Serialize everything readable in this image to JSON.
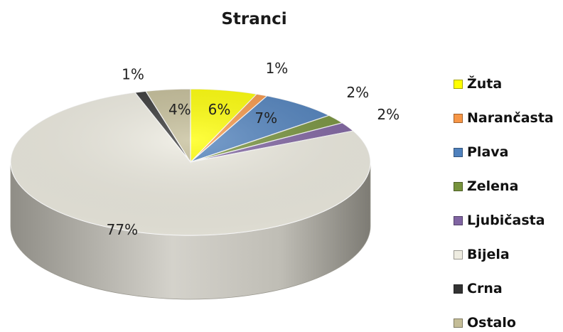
{
  "chart_data": {
    "type": "pie",
    "title": "Stranci",
    "legend_position": "right",
    "series": [
      {
        "name": "Žuta",
        "value": 6,
        "label": "6%",
        "color": "#ffff00"
      },
      {
        "name": "Narančasta",
        "value": 1,
        "label": "1%",
        "color": "#f79646"
      },
      {
        "name": "Plava",
        "value": 7,
        "label": "7%",
        "color": "#4f81bd"
      },
      {
        "name": "Zelena",
        "value": 2,
        "label": "2%",
        "color": "#77933c"
      },
      {
        "name": "Ljubičasta",
        "value": 2,
        "label": "2%",
        "color": "#8064a2"
      },
      {
        "name": "Bijela",
        "value": 77,
        "label": "77%",
        "color": "#eeece1"
      },
      {
        "name": "Crna",
        "value": 1,
        "label": "1%",
        "color": "#333333"
      },
      {
        "name": "Ostalo",
        "value": 4,
        "label": "4%",
        "color": "#c4bd97"
      }
    ]
  }
}
